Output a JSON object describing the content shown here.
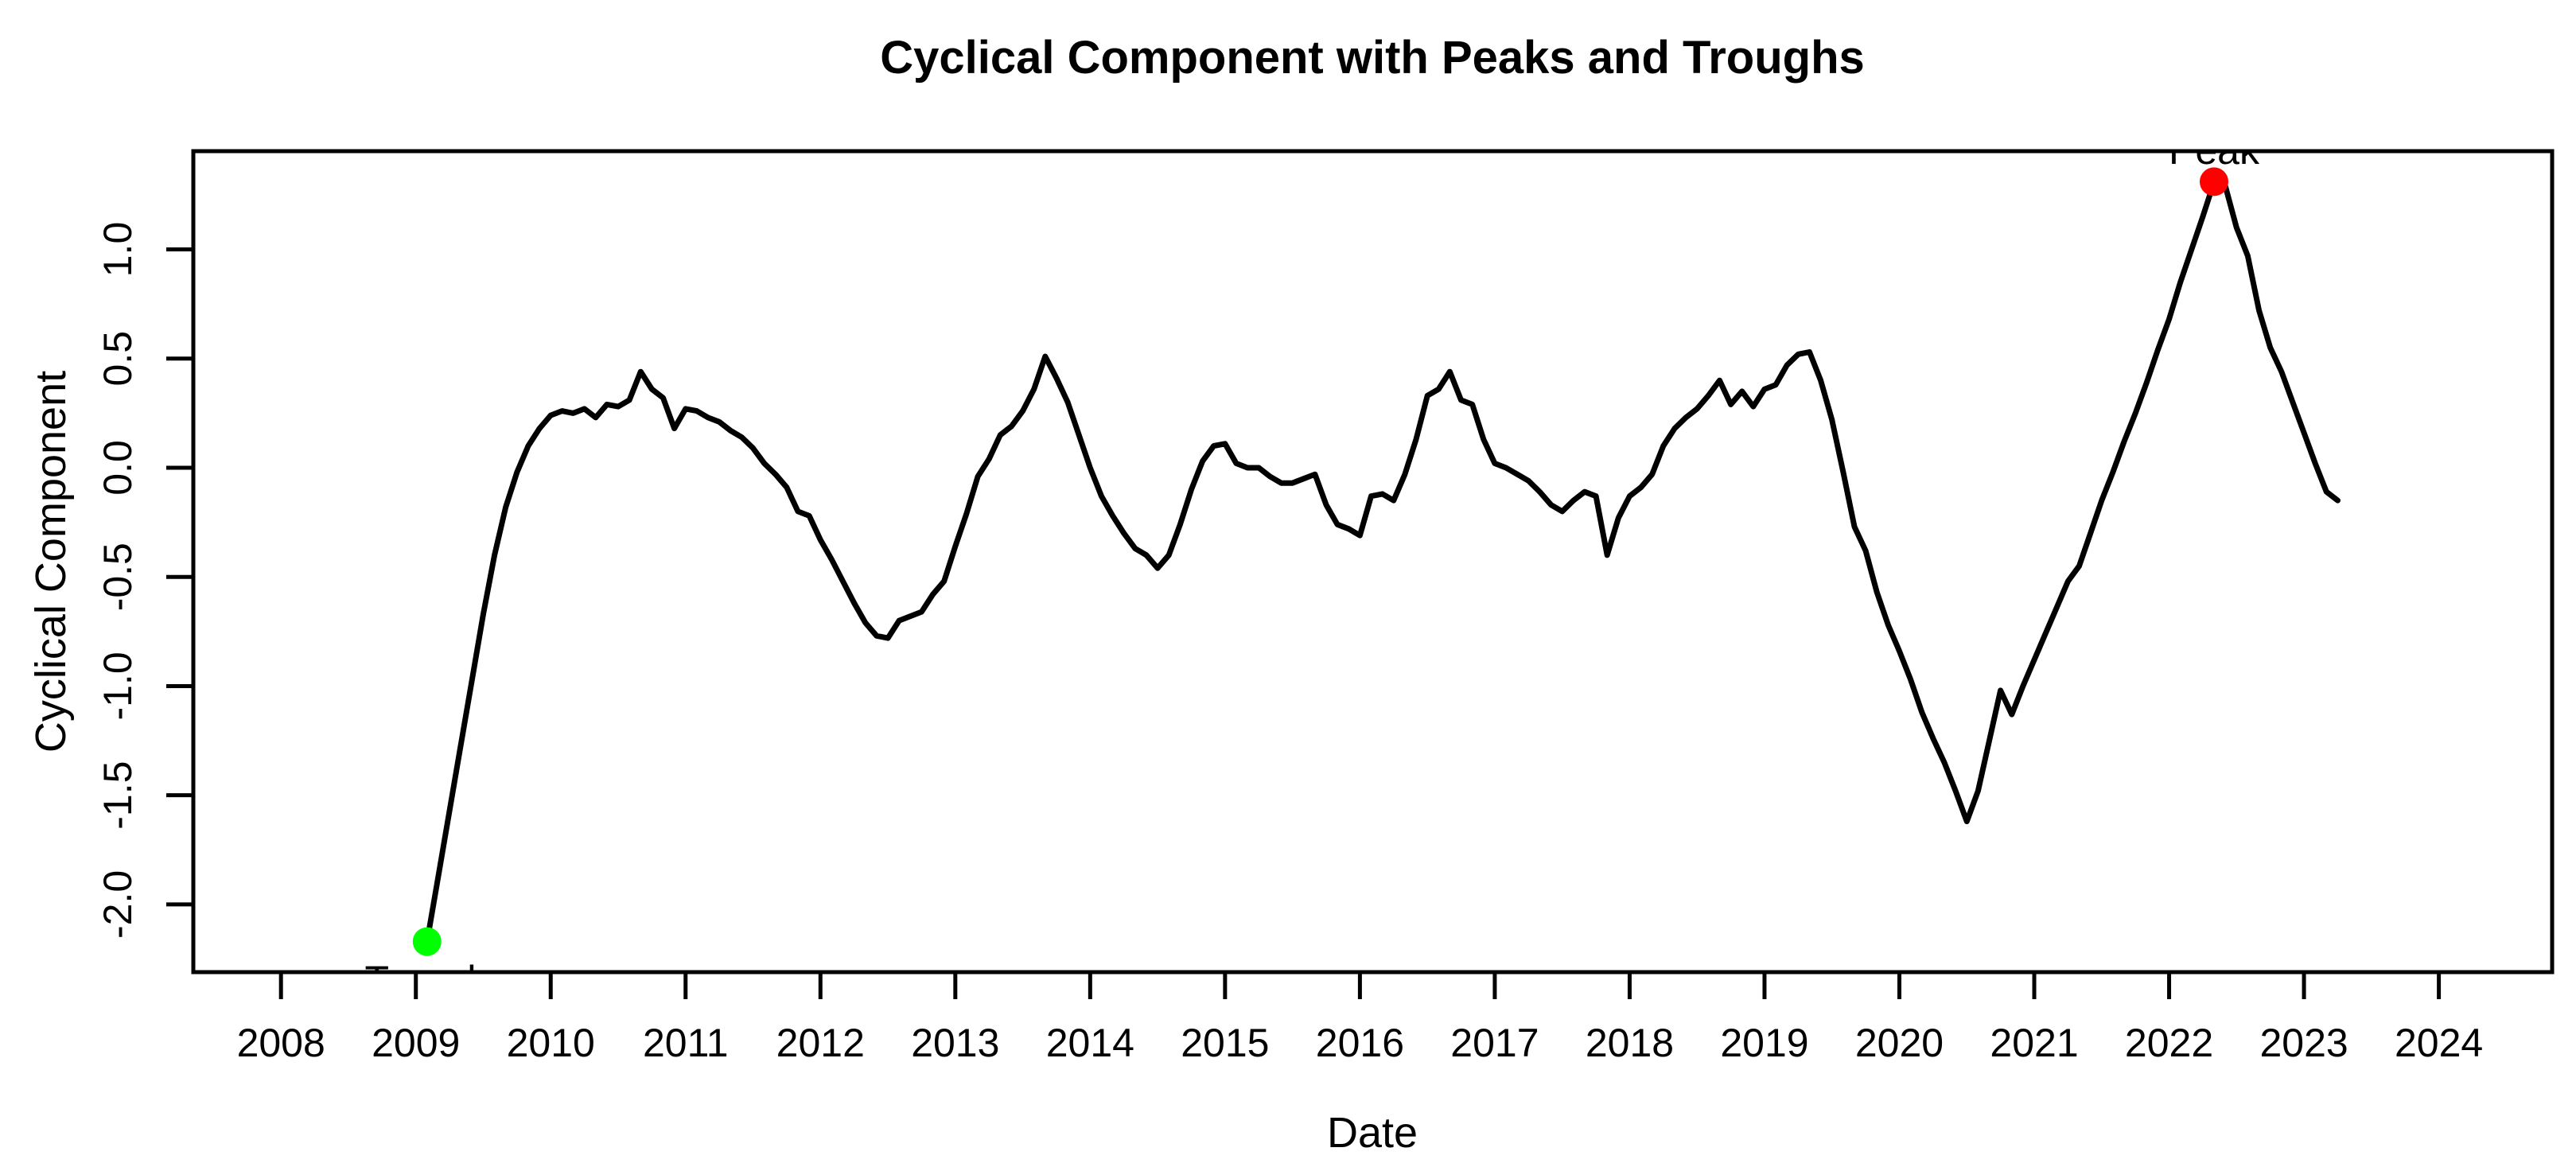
{
  "figure": {
    "background": "#FFFFFF",
    "text_color": "#000000"
  },
  "chart_data": {
    "type": "line",
    "title": "Cyclical Component with Peaks and Troughs",
    "xlabel": "Date",
    "ylabel": "Cyclical Component",
    "x_tick_labels": [
      "2008",
      "2009",
      "2010",
      "2011",
      "2012",
      "2013",
      "2014",
      "2015",
      "2016",
      "2017",
      "2018",
      "2019",
      "2020",
      "2021",
      "2022",
      "2023",
      "2024"
    ],
    "y_tick_labels": [
      "-2.0",
      "-1.5",
      "-1.0",
      "-0.5",
      "0.0",
      "0.5",
      "1.0"
    ],
    "xlim": [
      2007.35,
      2024.84
    ],
    "ylim": [
      -2.31,
      1.45
    ],
    "grid": false,
    "legend": null,
    "line_color": "#000000",
    "series": [
      {
        "name": "cyclical_component",
        "start_year": 2009,
        "start_month": 2,
        "frequency": "monthly",
        "values": [
          -2.17,
          -1.87,
          -1.57,
          -1.27,
          -0.97,
          -0.67,
          -0.4,
          -0.18,
          -0.02,
          0.1,
          0.18,
          0.24,
          0.26,
          0.25,
          0.27,
          0.23,
          0.29,
          0.28,
          0.31,
          0.44,
          0.36,
          0.32,
          0.18,
          0.27,
          0.26,
          0.23,
          0.21,
          0.17,
          0.14,
          0.09,
          0.02,
          -0.03,
          -0.09,
          -0.2,
          -0.22,
          -0.33,
          -0.42,
          -0.52,
          -0.62,
          -0.71,
          -0.77,
          -0.78,
          -0.7,
          -0.68,
          -0.66,
          -0.58,
          -0.52,
          -0.36,
          -0.21,
          -0.04,
          0.04,
          0.15,
          0.19,
          0.26,
          0.36,
          0.51,
          0.41,
          0.3,
          0.15,
          0.0,
          -0.13,
          -0.22,
          -0.3,
          -0.37,
          -0.4,
          -0.46,
          -0.4,
          -0.26,
          -0.1,
          0.03,
          0.1,
          0.11,
          0.02,
          0.0,
          0.0,
          -0.04,
          -0.07,
          -0.07,
          -0.05,
          -0.03,
          -0.17,
          -0.26,
          -0.28,
          -0.31,
          -0.13,
          -0.12,
          -0.15,
          -0.03,
          0.13,
          0.33,
          0.36,
          0.44,
          0.31,
          0.29,
          0.13,
          0.02,
          0.0,
          -0.03,
          -0.06,
          -0.11,
          -0.17,
          -0.2,
          -0.15,
          -0.11,
          -0.13,
          -0.4,
          -0.23,
          -0.13,
          -0.09,
          -0.03,
          0.1,
          0.18,
          0.23,
          0.27,
          0.33,
          0.4,
          0.29,
          0.35,
          0.28,
          0.36,
          0.38,
          0.47,
          0.52,
          0.53,
          0.4,
          0.22,
          -0.02,
          -0.27,
          -0.38,
          -0.57,
          -0.72,
          -0.84,
          -0.97,
          -1.12,
          -1.24,
          -1.35,
          -1.48,
          -1.62,
          -1.48,
          -1.25,
          -1.02,
          -1.13,
          -1.0,
          -0.88,
          -0.76,
          -0.64,
          -0.52,
          -0.45,
          -0.3,
          -0.15,
          -0.02,
          0.12,
          0.25,
          0.39,
          0.54,
          0.68,
          0.85,
          1.0,
          1.15,
          1.31,
          1.29,
          1.1,
          0.97,
          0.72,
          0.55,
          0.44,
          0.3,
          0.16,
          0.02,
          -0.11,
          -0.15
        ]
      }
    ],
    "annotations": [
      {
        "label": "Peak",
        "x": 2022.333,
        "y": 1.31,
        "color": "#FF0000",
        "marker": "point",
        "label_position": "above"
      },
      {
        "label": "Trough",
        "x": 2009.083,
        "y": -2.17,
        "color": "#00FF00",
        "marker": "point",
        "label_position": "below"
      }
    ]
  }
}
